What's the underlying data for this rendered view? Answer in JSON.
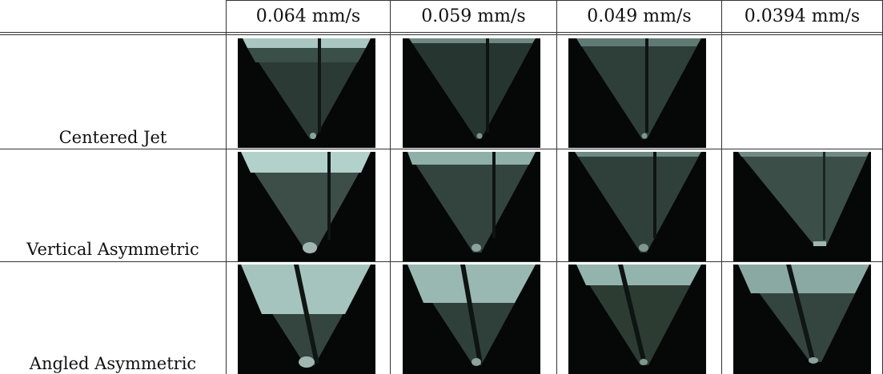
{
  "table": {
    "columns": [
      "0.064 mm/s",
      "0.059 mm/s",
      "0.049 mm/s",
      "0.0394 mm/s"
    ],
    "rows": [
      {
        "label": "Centered Jet",
        "images": [
          "present",
          "present",
          "present",
          "absent"
        ]
      },
      {
        "label": "Vertical Asymmetric",
        "images": [
          "present",
          "present",
          "present",
          "present"
        ]
      },
      {
        "label": "Angled Asymmetric",
        "images": [
          "present",
          "present",
          "present",
          "present"
        ]
      }
    ]
  }
}
